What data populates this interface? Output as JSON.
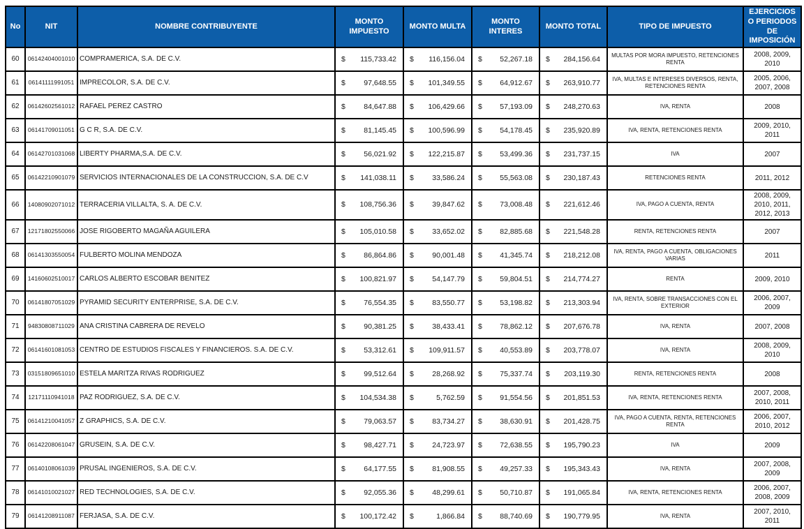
{
  "table": {
    "currency_symbol": "$",
    "colors": {
      "header_bg": "#0d5ea9",
      "header_text": "#ffffff",
      "border": "#000000",
      "body_text": "#1a1a1a"
    },
    "header": {
      "no": "No",
      "nit": "NIT",
      "nombre": "NOMBRE CONTRIBUYENTE",
      "monto_impuesto": "MONTO IMPUESTO",
      "monto_multa": "MONTO MULTA",
      "monto_interes": "MONTO INTERES",
      "monto_total": "MONTO TOTAL",
      "tipo": "TIPO DE IMPUESTO",
      "ejercicios": "EJERCICIOS O PERIODOS DE IMPOSICIÓN"
    },
    "rows": [
      {
        "no": "60",
        "nit": "06142404001010",
        "nombre": "COMPRAMERICA, S.A. DE C.V.",
        "impuesto": "115,733.42",
        "multa": "116,156.04",
        "interes": "52,267.18",
        "total": "284,156.64",
        "tipo": "MULTAS POR MORA IMPUESTO, RETENCIONES RENTA",
        "periodos": "2008, 2009, 2010"
      },
      {
        "no": "61",
        "nit": "06141111991051",
        "nombre": "IMPRECOLOR, S.A. DE C.V.",
        "impuesto": "97,648.55",
        "multa": "101,349.55",
        "interes": "64,912.67",
        "total": "263,910.77",
        "tipo": "IVA, MULTAS E INTERESES DIVERSOS, RENTA, RETENCIONES RENTA",
        "periodos": "2005, 2006, 2007, 2008"
      },
      {
        "no": "62",
        "nit": "06142602561012",
        "nombre": "RAFAEL PEREZ CASTRO",
        "impuesto": "84,647.88",
        "multa": "106,429.66",
        "interes": "57,193.09",
        "total": "248,270.63",
        "tipo": "IVA, RENTA",
        "periodos": "2008"
      },
      {
        "no": "63",
        "nit": "06141709011051",
        "nombre": "G C R, S.A. DE C.V.",
        "impuesto": "81,145.45",
        "multa": "100,596.99",
        "interes": "54,178.45",
        "total": "235,920.89",
        "tipo": "IVA, RENTA, RETENCIONES RENTA",
        "periodos": "2009, 2010, 2011"
      },
      {
        "no": "64",
        "nit": "06142701031068",
        "nombre": "LIBERTY PHARMA,S.A. DE C.V.",
        "impuesto": "56,021.92",
        "multa": "122,215.87",
        "interes": "53,499.36",
        "total": "231,737.15",
        "tipo": "IVA",
        "periodos": "2007"
      },
      {
        "no": "65",
        "nit": "06142210901079",
        "nombre": "SERVICIOS INTERNACIONALES DE LA CONSTRUCCION, S.A. DE C.V",
        "impuesto": "141,038.11",
        "multa": "33,586.24",
        "interes": "55,563.08",
        "total": "230,187.43",
        "tipo": "RETENCIONES RENTA",
        "periodos": "2011, 2012"
      },
      {
        "no": "66",
        "nit": "14080902071012",
        "nombre": "TERRACERIA VILLALTA, S. A. DE C.V.",
        "impuesto": "108,756.36",
        "multa": "39,847.62",
        "interes": "73,008.48",
        "total": "221,612.46",
        "tipo": "IVA, PAGO A CUENTA, RENTA",
        "periodos": "2008, 2009, 2010, 2011, 2012, 2013"
      },
      {
        "no": "67",
        "nit": "12171802550066",
        "nombre": "JOSE RIGOBERTO MAGAÑA AGUILERA",
        "impuesto": "105,010.58",
        "multa": "33,652.02",
        "interes": "82,885.68",
        "total": "221,548.28",
        "tipo": "RENTA, RETENCIONES RENTA",
        "periodos": "2007"
      },
      {
        "no": "68",
        "nit": "06141303550054",
        "nombre": "FULBERTO MOLINA MENDOZA",
        "impuesto": "86,864.86",
        "multa": "90,001.48",
        "interes": "41,345.74",
        "total": "218,212.08",
        "tipo": "IVA, RENTA, PAGO A CUENTA, OBLIGACIONES VARIAS",
        "periodos": "2011"
      },
      {
        "no": "69",
        "nit": "14160602510017",
        "nombre": "CARLOS ALBERTO ESCOBAR BENITEZ",
        "impuesto": "100,821.97",
        "multa": "54,147.79",
        "interes": "59,804.51",
        "total": "214,774.27",
        "tipo": "RENTA",
        "periodos": "2009, 2010"
      },
      {
        "no": "70",
        "nit": "06141807051029",
        "nombre": "PYRAMID SECURITY ENTERPRISE, S.A. DE C.V.",
        "impuesto": "76,554.35",
        "multa": "83,550.77",
        "interes": "53,198.82",
        "total": "213,303.94",
        "tipo": "IVA, RENTA, SOBRE TRANSACCIONES CON EL EXTERIOR",
        "periodos": "2006, 2007, 2009"
      },
      {
        "no": "71",
        "nit": "94830808711029",
        "nombre": "ANA CRISTINA CABRERA DE REVELO",
        "impuesto": "90,381.25",
        "multa": "38,433.41",
        "interes": "78,862.12",
        "total": "207,676.78",
        "tipo": "IVA, RENTA",
        "periodos": "2007, 2008"
      },
      {
        "no": "72",
        "nit": "06141601081053",
        "nombre": "CENTRO  DE ESTUDIOS  FISCALES Y FINANCIEROS. S.A. DE C.V.",
        "impuesto": "53,312.61",
        "multa": "109,911.57",
        "interes": "40,553.89",
        "total": "203,778.07",
        "tipo": "IVA, RENTA",
        "periodos": "2008, 2009, 2010"
      },
      {
        "no": "73",
        "nit": "03151809651010",
        "nombre": "ESTELA MARITZA RIVAS RODRIGUEZ",
        "impuesto": "99,512.64",
        "multa": "28,268.92",
        "interes": "75,337.74",
        "total": "203,119.30",
        "tipo": "RENTA, RETENCIONES RENTA",
        "periodos": "2008"
      },
      {
        "no": "74",
        "nit": "12171110941018",
        "nombre": "PAZ RODRIGUEZ, S.A. DE C.V.",
        "impuesto": "104,534.38",
        "multa": "5,762.59",
        "interes": "91,554.56",
        "total": "201,851.53",
        "tipo": "IVA, RENTA, RETENCIONES RENTA",
        "periodos": "2007, 2008, 2010, 2011"
      },
      {
        "no": "75",
        "nit": "06141210041057",
        "nombre": "Z GRAPHICS, S.A. DE C.V.",
        "impuesto": "79,063.57",
        "multa": "83,734.27",
        "interes": "38,630.91",
        "total": "201,428.75",
        "tipo": "IVA, PAGO A CUENTA, RENTA, RETENCIONES RENTA",
        "periodos": "2006, 2007, 2010, 2012"
      },
      {
        "no": "76",
        "nit": "06142208061047",
        "nombre": "GRUSEIN, S.A. DE C.V.",
        "impuesto": "98,427.71",
        "multa": "24,723.97",
        "interes": "72,638.55",
        "total": "195,790.23",
        "tipo": "IVA",
        "periodos": "2009"
      },
      {
        "no": "77",
        "nit": "06140108061039",
        "nombre": "PRUSAL INGENIEROS, S.A. DE C.V.",
        "impuesto": "64,177.55",
        "multa": "81,908.55",
        "interes": "49,257.33",
        "total": "195,343.43",
        "tipo": "IVA, RENTA",
        "periodos": "2007, 2008, 2009"
      },
      {
        "no": "78",
        "nit": "06141010021027",
        "nombre": "RED TECHNOLOGIES, S.A. DE C.V.",
        "impuesto": "92,055.36",
        "multa": "48,299.61",
        "interes": "50,710.87",
        "total": "191,065.84",
        "tipo": "IVA, RENTA, RETENCIONES RENTA",
        "periodos": "2006, 2007, 2008, 2009"
      },
      {
        "no": "79",
        "nit": "06141208911087",
        "nombre": "FERJASA, S.A. DE C.V.",
        "impuesto": "100,172.42",
        "multa": "1,866.84",
        "interes": "88,740.69",
        "total": "190,779.95",
        "tipo": "IVA, RENTA",
        "periodos": "2007, 2010, 2011"
      }
    ]
  }
}
